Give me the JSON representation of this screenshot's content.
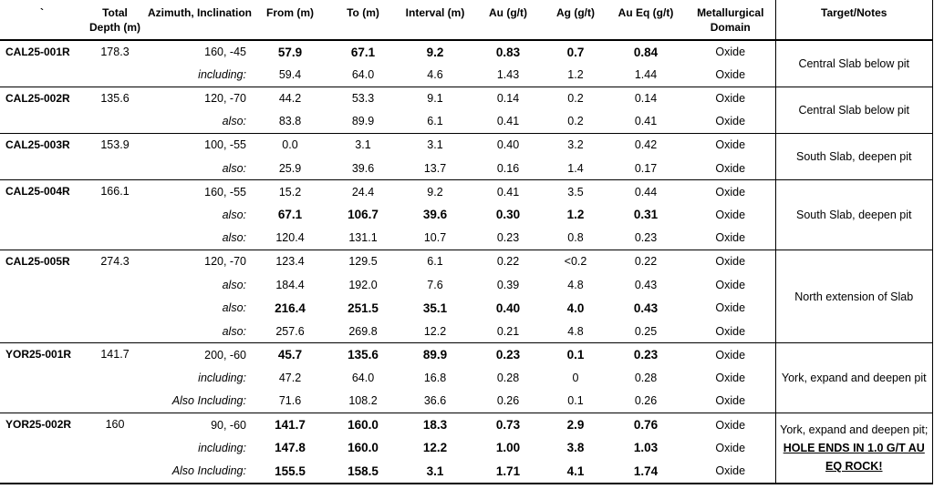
{
  "headers": {
    "hole": "`",
    "depth": "Total Depth (m)",
    "azimuth": "Azimuth, Inclination",
    "from": "From (m)",
    "to": "To (m)",
    "interval": "Interval (m)",
    "au": "Au (g/t)",
    "ag": "Ag (g/t)",
    "aueq": "Au Eq (g/t)",
    "domain": "Metallurgical Domain",
    "target": "Target/Notes"
  },
  "holes": [
    {
      "id": "CAL25-001R",
      "depth": "178.3",
      "note": "Central Slab below pit",
      "rows": [
        {
          "az": "160, -45",
          "from": "57.9",
          "to": "67.1",
          "interval": "9.2",
          "au": "0.83",
          "ag": "0.7",
          "aueq": "0.84",
          "domain": "Oxide",
          "bold": true
        },
        {
          "az": "including:",
          "from": "59.4",
          "to": "64.0",
          "interval": "4.6",
          "au": "1.43",
          "ag": "1.2",
          "aueq": "1.44",
          "domain": "Oxide",
          "bold": false
        }
      ]
    },
    {
      "id": "CAL25-002R",
      "depth": "135.6",
      "note": "Central Slab below pit",
      "rows": [
        {
          "az": "120, -70",
          "from": "44.2",
          "to": "53.3",
          "interval": "9.1",
          "au": "0.14",
          "ag": "0.2",
          "aueq": "0.14",
          "domain": "Oxide",
          "bold": false
        },
        {
          "az": "also:",
          "from": "83.8",
          "to": "89.9",
          "interval": "6.1",
          "au": "0.41",
          "ag": "0.2",
          "aueq": "0.41",
          "domain": "Oxide",
          "bold": false
        }
      ]
    },
    {
      "id": "CAL25-003R",
      "depth": "153.9",
      "note": "South Slab, deepen pit",
      "rows": [
        {
          "az": "100, -55",
          "from": "0.0",
          "to": "3.1",
          "interval": "3.1",
          "au": "0.40",
          "ag": "3.2",
          "aueq": "0.42",
          "domain": "Oxide",
          "bold": false
        },
        {
          "az": "also:",
          "from": "25.9",
          "to": "39.6",
          "interval": "13.7",
          "au": "0.16",
          "ag": "1.4",
          "aueq": "0.17",
          "domain": "Oxide",
          "bold": false
        }
      ]
    },
    {
      "id": "CAL25-004R",
      "depth": "166.1",
      "note": "South Slab, deepen pit",
      "rows": [
        {
          "az": "160, -55",
          "from": "15.2",
          "to": "24.4",
          "interval": "9.2",
          "au": "0.41",
          "ag": "3.5",
          "aueq": "0.44",
          "domain": "Oxide",
          "bold": false
        },
        {
          "az": "also:",
          "from": "67.1",
          "to": "106.7",
          "interval": "39.6",
          "au": "0.30",
          "ag": "1.2",
          "aueq": "0.31",
          "domain": "Oxide",
          "bold": true
        },
        {
          "az": "also:",
          "from": "120.4",
          "to": "131.1",
          "interval": "10.7",
          "au": "0.23",
          "ag": "0.8",
          "aueq": "0.23",
          "domain": "Oxide",
          "bold": false
        }
      ]
    },
    {
      "id": "CAL25-005R",
      "depth": "274.3",
      "note": "North extension of Slab",
      "rows": [
        {
          "az": "120, -70",
          "from": "123.4",
          "to": "129.5",
          "interval": "6.1",
          "au": "0.22",
          "ag": "<0.2",
          "aueq": "0.22",
          "domain": "Oxide",
          "bold": false
        },
        {
          "az": "also:",
          "from": "184.4",
          "to": "192.0",
          "interval": "7.6",
          "au": "0.39",
          "ag": "4.8",
          "aueq": "0.43",
          "domain": "Oxide",
          "bold": false
        },
        {
          "az": "also:",
          "from": "216.4",
          "to": "251.5",
          "interval": "35.1",
          "au": "0.40",
          "ag": "4.0",
          "aueq": "0.43",
          "domain": "Oxide",
          "bold": true
        },
        {
          "az": "also:",
          "from": "257.6",
          "to": "269.8",
          "interval": "12.2",
          "au": "0.21",
          "ag": "4.8",
          "aueq": "0.25",
          "domain": "Oxide",
          "bold": false
        }
      ]
    },
    {
      "id": "YOR25-001R",
      "depth": "141.7",
      "note": "York, expand and deepen pit",
      "rows": [
        {
          "az": "200, -60",
          "from": "45.7",
          "to": "135.6",
          "interval": "89.9",
          "au": "0.23",
          "ag": "0.1",
          "aueq": "0.23",
          "domain": "Oxide",
          "bold": true
        },
        {
          "az": "including:",
          "from": "47.2",
          "to": "64.0",
          "interval": "16.8",
          "au": "0.28",
          "ag": "0",
          "aueq": "0.28",
          "domain": "Oxide",
          "bold": false
        },
        {
          "az": "Also Including:",
          "from": "71.6",
          "to": "108.2",
          "interval": "36.6",
          "au": "0.26",
          "ag": "0.1",
          "aueq": "0.26",
          "domain": "Oxide",
          "bold": false
        }
      ]
    },
    {
      "id": "YOR25-002R",
      "depth": "160",
      "note": "York, expand and deepen pit;",
      "note_emph": "HOLE ENDS IN 1.0 G/T AU EQ ROCK!",
      "rows": [
        {
          "az": "90, -60",
          "from": "141.7",
          "to": "160.0",
          "interval": "18.3",
          "au": "0.73",
          "ag": "2.9",
          "aueq": "0.76",
          "domain": "Oxide",
          "bold": true
        },
        {
          "az": "including:",
          "from": "147.8",
          "to": "160.0",
          "interval": "12.2",
          "au": "1.00",
          "ag": "3.8",
          "aueq": "1.03",
          "domain": "Oxide",
          "bold": true
        },
        {
          "az": "Also Including:",
          "from": "155.5",
          "to": "158.5",
          "interval": "3.1",
          "au": "1.71",
          "ag": "4.1",
          "aueq": "1.74",
          "domain": "Oxide",
          "bold": true
        }
      ]
    }
  ]
}
